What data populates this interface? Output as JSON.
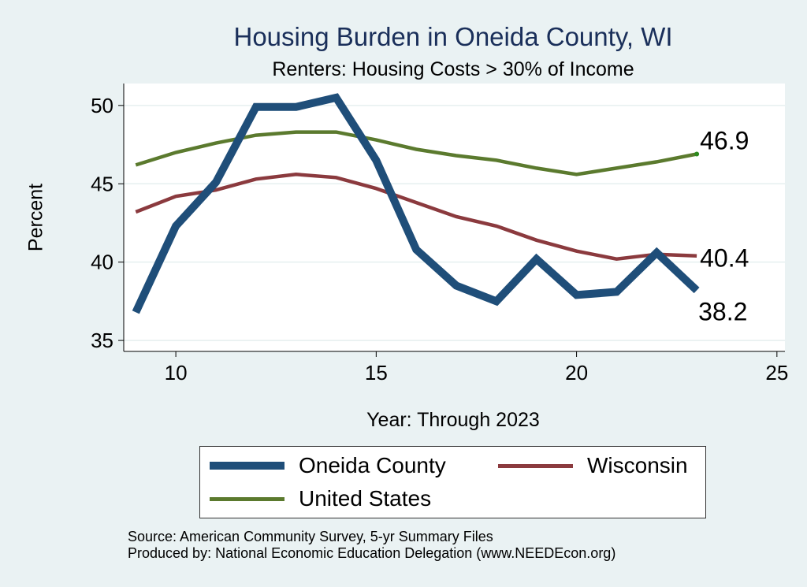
{
  "title": "Housing Burden in Oneida County, WI",
  "subtitle": "Renters: Housing Costs > 30% of Income",
  "colors": {
    "background": "#eaf2f3",
    "plot_background": "#ffffff",
    "oneida": "#1f4e79",
    "wisconsin": "#8b3a3e",
    "united_states": "#5b7a2e"
  },
  "chart_data": {
    "type": "line",
    "xlabel": "Year: Through 2023",
    "ylabel": "Percent",
    "xlim": [
      8.7,
      25.2
    ],
    "ylim": [
      34.3,
      51.4
    ],
    "xticks": [
      10,
      15,
      20,
      25
    ],
    "yticks": [
      35,
      40,
      45,
      50
    ],
    "grid": true,
    "legend_position": "bottom",
    "x": [
      9,
      10,
      11,
      12,
      13,
      14,
      15,
      16,
      17,
      18,
      19,
      20,
      21,
      22,
      23
    ],
    "series": [
      {
        "name": "Oneida County",
        "color": "#1f4e79",
        "values": [
          36.8,
          42.3,
          45.1,
          49.9,
          49.9,
          50.5,
          46.5,
          40.8,
          38.5,
          37.5,
          40.2,
          37.9,
          38.1,
          40.6,
          38.2
        ],
        "end_label": "38.2"
      },
      {
        "name": "Wisconsin",
        "color": "#8b3a3e",
        "values": [
          43.2,
          44.2,
          44.6,
          45.3,
          45.6,
          45.4,
          44.7,
          43.8,
          42.9,
          42.3,
          41.4,
          40.7,
          40.2,
          40.5,
          40.4
        ],
        "end_label": "40.4"
      },
      {
        "name": "United States",
        "color": "#5b7a2e",
        "values": [
          46.2,
          47.0,
          47.6,
          48.1,
          48.3,
          48.3,
          47.8,
          47.2,
          46.8,
          46.5,
          46.0,
          45.6,
          46.0,
          46.4,
          46.9
        ],
        "end_label": "46.9"
      }
    ]
  },
  "legend": {
    "items": [
      "Oneida County",
      "Wisconsin",
      "United States"
    ]
  },
  "source_lines": [
    "Source: American Community Survey, 5-yr Summary Files",
    "Produced by: National Economic Education Delegation (www.NEEDEcon.org)"
  ]
}
